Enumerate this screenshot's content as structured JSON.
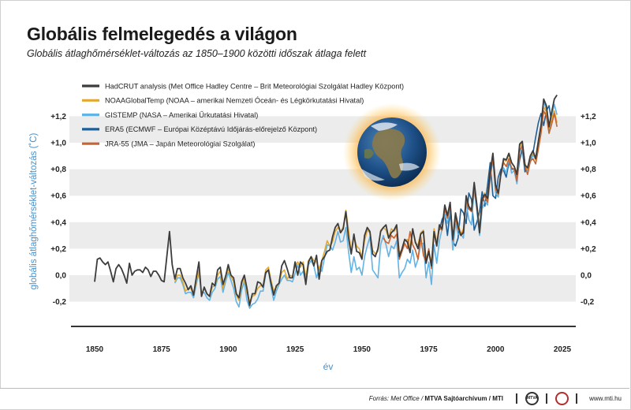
{
  "title": "Globális felmelegedés a világon",
  "subtitle": "Globális átlaghőmérséklet-változás az 1850–1900 közötti időszak átlaga felett",
  "footer": {
    "source_prefix": "Forrás: Met Office / ",
    "source_org": "MTVA Sajtóarchívum / MTI",
    "logo1": "MTVA",
    "url": "www.mti.hu"
  },
  "colors": {
    "HadCRUT": "#3c3c3c",
    "NOAAGlobalTemp": "#e3a832",
    "GISTEMP": "#62b3e6",
    "ERA5": "#1f5f96",
    "JRA55": "#c8642f",
    "band": "#ececec",
    "axis_label": "#4a90c8"
  },
  "chart_data": {
    "type": "line",
    "xlabel": "év",
    "ylabel": "globális átlaghőmérséklet-változás (˚C)",
    "xlim": [
      1850,
      2021
    ],
    "ylim": [
      -0.3,
      1.35
    ],
    "x_ticks": [
      1850,
      1875,
      1900,
      1925,
      1950,
      1975,
      2000,
      2025
    ],
    "y_ticks": [
      -0.2,
      0.0,
      0.2,
      0.4,
      0.6,
      0.8,
      1.0,
      1.2
    ],
    "y_tick_labels": [
      "-0,2",
      "0,0",
      "+0,2",
      "+0,4",
      "+0,6",
      "+0,8",
      "+1,0",
      "+1,2"
    ],
    "legend_position": "top-left",
    "grid": "alternating horizontal bands",
    "series": [
      {
        "name": "HadCRUT analysis (Met Office Hadley Centre – Brit Meteorológiai Szolgálat Hadley Központ)",
        "color_key": "HadCRUT",
        "x_start": 1850,
        "values": [
          -0.05,
          0.12,
          0.13,
          0.1,
          0.08,
          0.1,
          0.03,
          -0.05,
          0.05,
          0.08,
          0.05,
          0.0,
          -0.06,
          0.09,
          0.0,
          0.03,
          0.04,
          0.04,
          0.02,
          0.06,
          0.04,
          -0.01,
          0.03,
          0.03,
          0.0,
          -0.04,
          -0.05,
          0.14,
          0.33,
          0.08,
          -0.03,
          0.05,
          0.05,
          -0.02,
          -0.06,
          -0.11,
          -0.08,
          -0.15,
          -0.02,
          0.1,
          -0.16,
          -0.09,
          -0.14,
          -0.16,
          -0.06,
          -0.08,
          0.04,
          0.06,
          -0.07,
          -0.01,
          0.08,
          0.0,
          -0.02,
          -0.14,
          -0.17,
          -0.05,
          0.0,
          -0.1,
          -0.23,
          -0.14,
          -0.14,
          -0.05,
          -0.06,
          -0.09,
          0.02,
          0.04,
          -0.06,
          -0.15,
          -0.08,
          -0.06,
          0.07,
          0.11,
          0.05,
          -0.02,
          -0.02,
          0.1,
          0.0,
          0.1,
          0.08,
          -0.07,
          0.1,
          0.14,
          0.07,
          0.15,
          -0.03,
          0.11,
          0.14,
          0.18,
          0.19,
          0.29,
          0.36,
          0.39,
          0.32,
          0.35,
          0.48,
          0.28,
          0.16,
          0.31,
          0.18,
          0.17,
          0.12,
          0.3,
          0.36,
          0.33,
          0.16,
          0.14,
          0.2,
          0.33,
          0.36,
          0.38,
          0.28,
          0.32,
          0.34,
          0.38,
          0.14,
          0.2,
          0.27,
          0.25,
          0.17,
          0.35,
          0.25,
          0.2,
          0.31,
          0.33,
          0.09,
          0.18,
          0.07,
          0.33,
          0.22,
          0.38,
          0.35,
          0.53,
          0.45,
          0.55,
          0.27,
          0.47,
          0.37,
          0.3,
          0.32,
          0.6,
          0.52,
          0.49,
          0.7,
          0.53,
          0.32,
          0.58,
          0.61,
          0.58,
          0.78,
          0.92,
          0.68,
          0.62,
          0.77,
          0.88,
          0.87,
          0.92,
          0.85,
          0.82,
          0.76,
          0.99,
          1.01,
          0.83,
          0.81,
          0.9,
          0.94,
          0.88,
          1.01,
          1.13,
          1.33,
          1.28,
          1.12,
          1.23,
          1.33,
          1.36
        ]
      },
      {
        "name": "NOAAGlobalTemp (NOAA – amerikai Nemzeti Óceán- és Légkörkutatási Hivatal)",
        "color_key": "NOAAGlobalTemp",
        "x_start": 1880,
        "values": [
          -0.05,
          0.0,
          0.0,
          -0.05,
          -0.12,
          -0.1,
          -0.1,
          -0.15,
          -0.05,
          0.04,
          -0.14,
          -0.1,
          -0.14,
          -0.16,
          -0.09,
          -0.08,
          0.0,
          0.03,
          -0.1,
          -0.02,
          0.05,
          -0.01,
          -0.05,
          -0.15,
          -0.19,
          -0.07,
          -0.02,
          -0.13,
          -0.2,
          -0.16,
          -0.15,
          -0.1,
          -0.08,
          -0.08,
          0.04,
          0.06,
          -0.04,
          -0.12,
          -0.09,
          -0.06,
          0.02,
          0.04,
          -0.03,
          0.0,
          -0.01,
          0.07,
          0.1,
          0.06,
          0.1,
          -0.02,
          0.11,
          0.14,
          0.11,
          0.1,
          0.05,
          0.11,
          0.18,
          0.26,
          0.22,
          0.25,
          0.33,
          0.36,
          0.33,
          0.36,
          0.49,
          0.34,
          0.17,
          0.29,
          0.22,
          0.2,
          0.14,
          0.26,
          0.34,
          0.32,
          0.19,
          0.16,
          0.18,
          0.34,
          0.36,
          0.34,
          0.28,
          0.35,
          0.33,
          0.36,
          0.17,
          0.19,
          0.26,
          0.27,
          0.21,
          0.35,
          0.24,
          0.23,
          0.32,
          0.34,
          0.12,
          0.19,
          0.09,
          0.35,
          0.24,
          0.38,
          0.34,
          0.52,
          0.45,
          0.54,
          0.28,
          0.45,
          0.39,
          0.31,
          0.35,
          0.57,
          0.51,
          0.5,
          0.68,
          0.53,
          0.35,
          0.56,
          0.62,
          0.56,
          0.77,
          0.92,
          0.67,
          0.61,
          0.77,
          0.87,
          0.86,
          0.91,
          0.85,
          0.82,
          0.77,
          0.97,
          1.0,
          0.84,
          0.8,
          0.89,
          0.93,
          0.87,
          1.01,
          1.11,
          1.27,
          1.23,
          1.11,
          1.18,
          1.24,
          1.15
        ]
      },
      {
        "name": "GISTEMP (NASA – Amerikai Űrkutatási Hivatal)",
        "color_key": "GISTEMP",
        "x_start": 1880,
        "values": [
          -0.06,
          -0.02,
          -0.02,
          -0.07,
          -0.14,
          -0.13,
          -0.13,
          -0.17,
          -0.07,
          0.02,
          -0.14,
          -0.13,
          -0.17,
          -0.19,
          -0.13,
          -0.1,
          -0.03,
          -0.01,
          -0.13,
          -0.05,
          0.02,
          -0.04,
          -0.1,
          -0.2,
          -0.24,
          -0.11,
          -0.05,
          -0.19,
          -0.25,
          -0.22,
          -0.21,
          -0.18,
          -0.12,
          -0.12,
          0.01,
          0.04,
          -0.09,
          -0.19,
          -0.12,
          -0.07,
          -0.03,
          0.0,
          -0.04,
          -0.04,
          -0.05,
          0.01,
          0.08,
          0.0,
          0.03,
          -0.06,
          0.08,
          0.11,
          0.07,
          -0.02,
          0.05,
          0.03,
          0.13,
          0.23,
          0.22,
          0.19,
          0.25,
          0.33,
          0.25,
          0.26,
          0.36,
          0.18,
          0.02,
          0.14,
          0.04,
          0.06,
          0.0,
          0.14,
          0.22,
          0.29,
          0.04,
          0.01,
          -0.02,
          0.23,
          0.3,
          0.23,
          0.14,
          0.22,
          0.2,
          0.26,
          -0.02,
          0.02,
          0.05,
          0.12,
          0.09,
          0.19,
          0.06,
          0.12,
          0.24,
          0.24,
          -0.02,
          0.1,
          -0.07,
          0.23,
          0.09,
          0.26,
          0.35,
          0.46,
          0.39,
          0.49,
          0.19,
          0.39,
          0.31,
          0.31,
          0.28,
          0.55,
          0.42,
          0.38,
          0.65,
          0.48,
          0.3,
          0.5,
          0.56,
          0.53,
          0.73,
          0.87,
          0.62,
          0.59,
          0.76,
          0.81,
          0.77,
          0.88,
          0.77,
          0.79,
          0.69,
          0.93,
          0.96,
          0.83,
          0.79,
          0.85,
          0.91,
          0.87,
          1.01,
          1.12,
          1.31,
          1.25,
          1.09,
          1.2,
          1.29,
          1.21
        ]
      },
      {
        "name": "ERA5 (ECMWF – Európai Középtávú Időjárás-előrejelző Központ)",
        "color_key": "ERA5",
        "x_start": 1979,
        "values": [
          0.34,
          0.42,
          0.46,
          0.3,
          0.48,
          0.25,
          0.22,
          0.28,
          0.5,
          0.47,
          0.39,
          0.62,
          0.57,
          0.34,
          0.4,
          0.48,
          0.63,
          0.52,
          0.68,
          0.85,
          0.6,
          0.58,
          0.74,
          0.8,
          0.79,
          0.74,
          0.85,
          0.8,
          0.8,
          0.72,
          0.87,
          0.95,
          0.78,
          0.82,
          0.86,
          0.92,
          1.04,
          1.15,
          1.22,
          1.13,
          1.24,
          1.28,
          1.15
        ]
      },
      {
        "name": "JRA-55 (JMA – Japán Meteorológiai Szolgálat)",
        "color_key": "JRA55",
        "x_start": 1958,
        "values": [
          0.28,
          0.25,
          0.24,
          0.3,
          0.28,
          0.31,
          0.12,
          0.18,
          0.24,
          0.2,
          0.33,
          0.23,
          0.19,
          0.12,
          0.29,
          0.15,
          0.1,
          0.2,
          0.05,
          0.32,
          0.22,
          0.36,
          0.34,
          0.5,
          0.43,
          0.53,
          0.26,
          0.43,
          0.35,
          0.31,
          0.33,
          0.56,
          0.5,
          0.48,
          0.66,
          0.52,
          0.32,
          0.56,
          0.6,
          0.55,
          0.74,
          0.89,
          0.65,
          0.61,
          0.76,
          0.85,
          0.82,
          0.88,
          0.81,
          0.8,
          0.71,
          0.94,
          0.98,
          0.82,
          0.76,
          0.86,
          0.88,
          0.84,
          0.95,
          1.07,
          1.24,
          1.2,
          1.07,
          1.14,
          1.22,
          1.12
        ]
      }
    ]
  }
}
